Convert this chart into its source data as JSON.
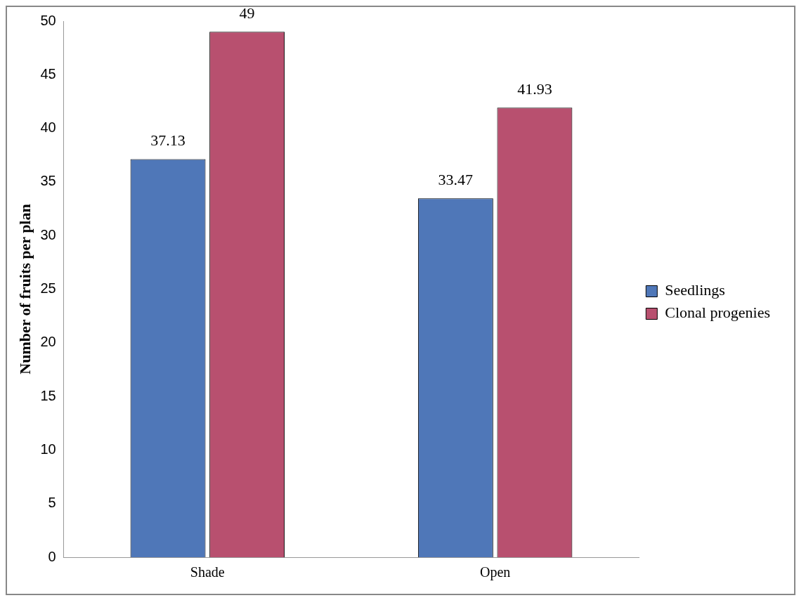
{
  "chart_data": {
    "type": "bar",
    "ylabel": "Number of fruits per plan",
    "categories": [
      "Shade",
      "Open"
    ],
    "series": [
      {
        "name": "Seedlings",
        "color": "#4f77b8",
        "values": [
          37.13,
          33.47
        ]
      },
      {
        "name": "Clonal progenies",
        "color": "#b8506f",
        "values": [
          49,
          41.93
        ]
      }
    ],
    "ylim": [
      0,
      50
    ],
    "yticks": [
      0,
      5,
      10,
      15,
      20,
      25,
      30,
      35,
      40,
      45,
      50
    ],
    "grid": false,
    "legend": "right",
    "data_labels": true
  }
}
